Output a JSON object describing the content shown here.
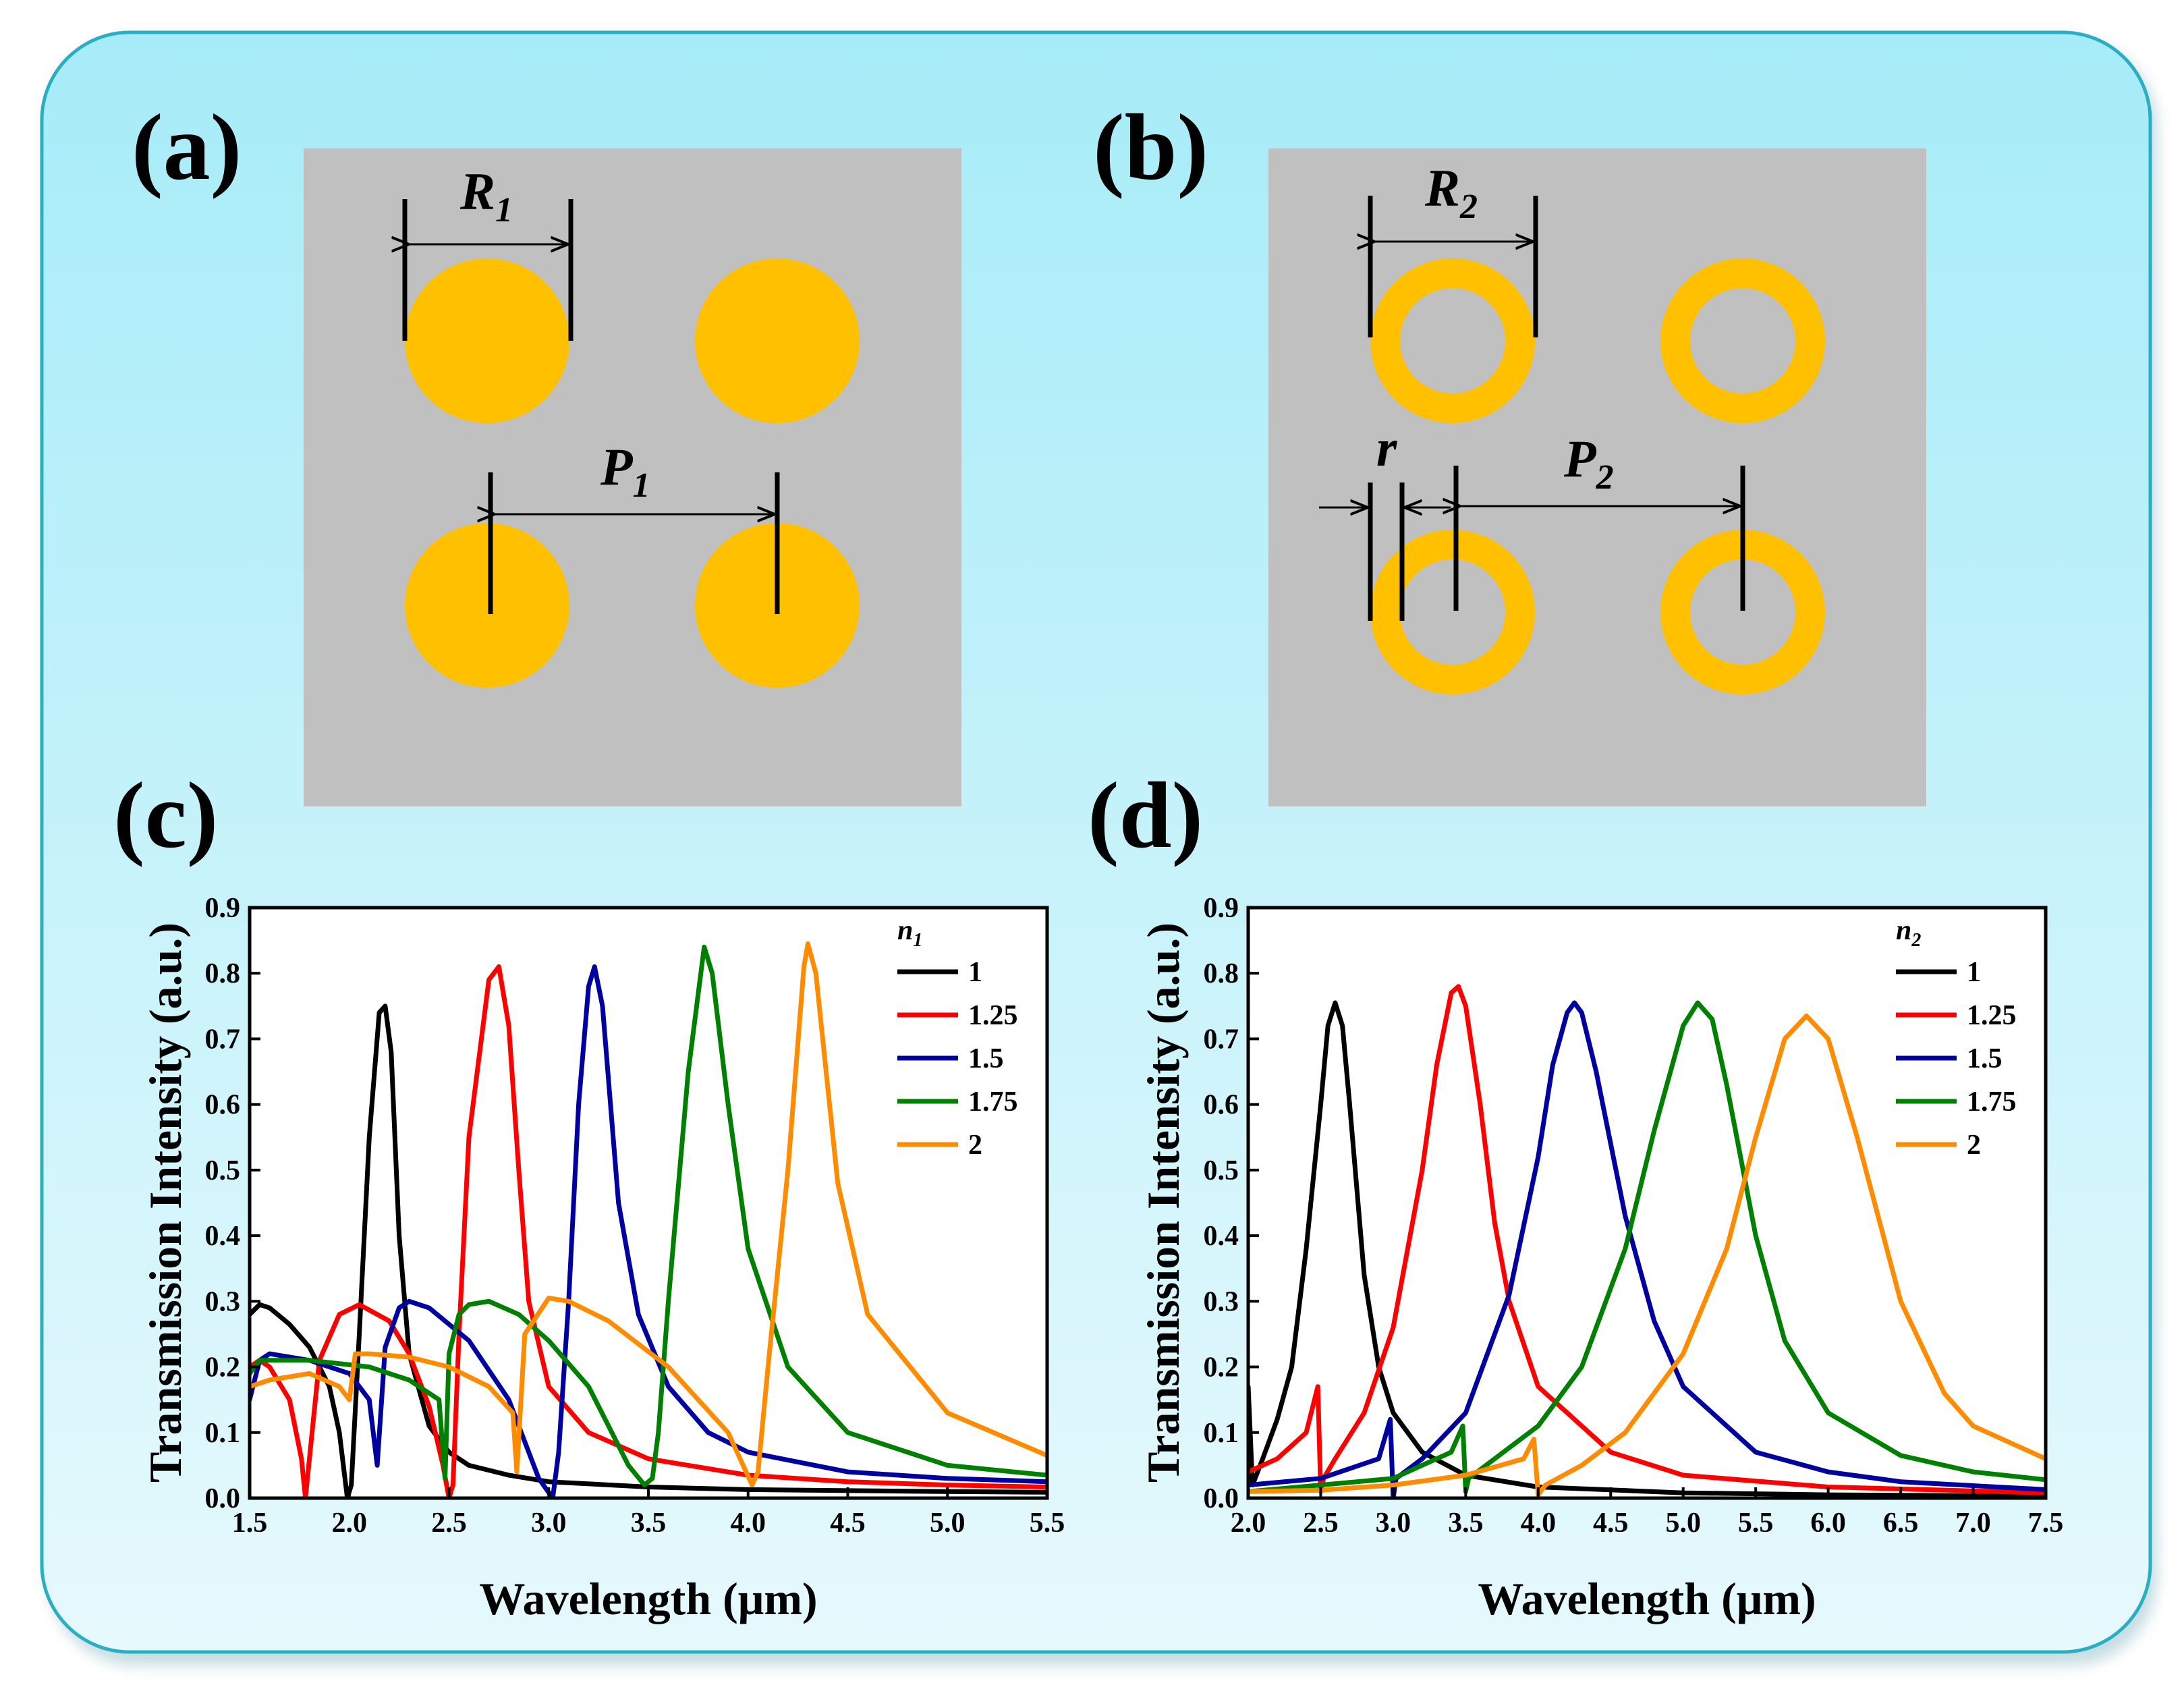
{
  "panels": {
    "a": {
      "label": "(a)",
      "diameter_label": "R",
      "diameter_sub": "1",
      "period_label": "P",
      "period_sub": "1"
    },
    "b": {
      "label": "(b)",
      "diameter_label": "R",
      "diameter_sub": "2",
      "period_label": "P",
      "period_sub": "2",
      "width_label": "r"
    }
  },
  "colors": {
    "background_top": "#a6ecf8",
    "background_bottom": "#e6f9fd",
    "border": "#2aaec4",
    "substrate": "#c0c0c0",
    "particle": "#ffc000"
  },
  "chart_data": [
    {
      "id": "c",
      "panel_label": "(c)",
      "type": "line",
      "xlabel": "Wavelength (μm)",
      "ylabel": "Transmission Intensity (a.u.)",
      "xlim": [
        1.5,
        5.5
      ],
      "ylim": [
        0.0,
        0.9
      ],
      "x_ticks": [
        "1.5",
        "2.0",
        "2.5",
        "3.0",
        "3.5",
        "4.0",
        "4.5",
        "5.0",
        "5.5"
      ],
      "y_ticks": [
        "0.0",
        "0.1",
        "0.2",
        "0.3",
        "0.4",
        "0.5",
        "0.6",
        "0.7",
        "0.8",
        "0.9"
      ],
      "legend_title": "n",
      "legend_title_sub": "1",
      "series": [
        {
          "name": "1",
          "color": "#000000",
          "x": [
            1.5,
            1.55,
            1.6,
            1.7,
            1.8,
            1.9,
            1.95,
            1.99,
            2.01,
            2.05,
            2.1,
            2.15,
            2.18,
            2.21,
            2.25,
            2.3,
            2.4,
            2.5,
            2.6,
            2.8,
            3.0,
            3.5,
            4.0,
            5.0,
            5.5
          ],
          "y": [
            0.28,
            0.295,
            0.29,
            0.265,
            0.23,
            0.17,
            0.1,
            0.0,
            0.02,
            0.25,
            0.55,
            0.74,
            0.75,
            0.68,
            0.4,
            0.22,
            0.11,
            0.07,
            0.05,
            0.035,
            0.025,
            0.017,
            0.013,
            0.01,
            0.009
          ]
        },
        {
          "name": "1.25",
          "color": "#ff0000",
          "x": [
            1.5,
            1.55,
            1.6,
            1.7,
            1.76,
            1.78,
            1.85,
            1.95,
            2.05,
            2.2,
            2.3,
            2.4,
            2.47,
            2.5,
            2.52,
            2.55,
            2.6,
            2.7,
            2.75,
            2.8,
            2.85,
            2.9,
            3.0,
            3.2,
            3.5,
            4.0,
            4.5,
            5.0,
            5.5
          ],
          "y": [
            0.2,
            0.21,
            0.2,
            0.15,
            0.06,
            0.0,
            0.21,
            0.28,
            0.295,
            0.27,
            0.22,
            0.14,
            0.05,
            0.0,
            0.02,
            0.25,
            0.55,
            0.79,
            0.81,
            0.72,
            0.5,
            0.3,
            0.17,
            0.1,
            0.06,
            0.035,
            0.025,
            0.02,
            0.017
          ]
        },
        {
          "name": "1.5",
          "color": "#0000a0",
          "x": [
            1.5,
            1.55,
            1.6,
            1.8,
            2.0,
            2.1,
            2.14,
            2.18,
            2.25,
            2.3,
            2.4,
            2.6,
            2.8,
            2.95,
            3.02,
            3.05,
            3.1,
            3.15,
            3.2,
            3.23,
            3.27,
            3.35,
            3.45,
            3.6,
            3.8,
            4.0,
            4.5,
            5.0,
            5.5
          ],
          "y": [
            0.15,
            0.21,
            0.22,
            0.21,
            0.19,
            0.15,
            0.05,
            0.23,
            0.29,
            0.3,
            0.29,
            0.24,
            0.15,
            0.03,
            0.0,
            0.07,
            0.3,
            0.6,
            0.78,
            0.81,
            0.75,
            0.45,
            0.28,
            0.17,
            0.1,
            0.07,
            0.04,
            0.03,
            0.025
          ]
        },
        {
          "name": "1.75",
          "color": "#008000",
          "x": [
            1.5,
            1.55,
            1.6,
            1.8,
            2.1,
            2.3,
            2.45,
            2.48,
            2.5,
            2.55,
            2.6,
            2.7,
            2.85,
            3.0,
            3.2,
            3.4,
            3.48,
            3.52,
            3.55,
            3.6,
            3.7,
            3.78,
            3.82,
            3.9,
            4.0,
            4.2,
            4.5,
            5.0,
            5.5
          ],
          "y": [
            0.19,
            0.21,
            0.21,
            0.21,
            0.2,
            0.18,
            0.15,
            0.03,
            0.22,
            0.28,
            0.295,
            0.3,
            0.28,
            0.24,
            0.17,
            0.05,
            0.02,
            0.03,
            0.1,
            0.3,
            0.65,
            0.84,
            0.8,
            0.6,
            0.38,
            0.2,
            0.1,
            0.05,
            0.035
          ]
        },
        {
          "name": "2",
          "color": "#ff8c00",
          "x": [
            1.5,
            1.6,
            1.8,
            1.95,
            2.0,
            2.03,
            2.1,
            2.3,
            2.5,
            2.7,
            2.82,
            2.84,
            2.88,
            3.0,
            3.1,
            3.3,
            3.6,
            3.9,
            4.02,
            4.05,
            4.1,
            4.2,
            4.28,
            4.3,
            4.34,
            4.45,
            4.6,
            5.0,
            5.5
          ],
          "y": [
            0.17,
            0.18,
            0.19,
            0.17,
            0.15,
            0.22,
            0.22,
            0.215,
            0.2,
            0.17,
            0.13,
            0.04,
            0.25,
            0.305,
            0.3,
            0.27,
            0.2,
            0.1,
            0.02,
            0.04,
            0.2,
            0.5,
            0.81,
            0.845,
            0.8,
            0.48,
            0.28,
            0.13,
            0.065
          ]
        }
      ]
    },
    {
      "id": "d",
      "panel_label": "(d)",
      "type": "line",
      "xlabel": "Wavelength (μm)",
      "ylabel": "Transmission Intensity (a.u.)",
      "xlim": [
        2.0,
        7.5
      ],
      "ylim": [
        0.0,
        0.9
      ],
      "x_ticks": [
        "2.0",
        "2.5",
        "3.0",
        "3.5",
        "4.0",
        "4.5",
        "5.0",
        "5.5",
        "6.0",
        "6.5",
        "7.0",
        "7.5"
      ],
      "y_ticks": [
        "0.0",
        "0.1",
        "0.2",
        "0.3",
        "0.4",
        "0.5",
        "0.6",
        "0.7",
        "0.8",
        "0.9"
      ],
      "legend_title": "n",
      "legend_title_sub": "2",
      "series": [
        {
          "name": "1",
          "color": "#000000",
          "x": [
            2.0,
            2.03,
            2.1,
            2.2,
            2.3,
            2.4,
            2.5,
            2.55,
            2.6,
            2.65,
            2.7,
            2.8,
            2.9,
            3.0,
            3.2,
            3.5,
            4.0,
            5.0,
            6.0,
            7.5
          ],
          "y": [
            0.17,
            0.02,
            0.06,
            0.12,
            0.2,
            0.38,
            0.6,
            0.72,
            0.755,
            0.72,
            0.6,
            0.34,
            0.2,
            0.13,
            0.07,
            0.035,
            0.017,
            0.008,
            0.005,
            0.003
          ]
        },
        {
          "name": "1.25",
          "color": "#ff0000",
          "x": [
            2.0,
            2.2,
            2.4,
            2.48,
            2.5,
            2.52,
            2.6,
            2.8,
            3.0,
            3.2,
            3.3,
            3.4,
            3.45,
            3.5,
            3.6,
            3.7,
            3.8,
            4.0,
            4.5,
            5.0,
            6.0,
            7.5
          ],
          "y": [
            0.04,
            0.06,
            0.1,
            0.17,
            0.01,
            0.03,
            0.06,
            0.13,
            0.26,
            0.5,
            0.66,
            0.77,
            0.78,
            0.75,
            0.6,
            0.42,
            0.3,
            0.17,
            0.07,
            0.035,
            0.017,
            0.008
          ]
        },
        {
          "name": "1.5",
          "color": "#0000a0",
          "x": [
            2.0,
            2.5,
            2.9,
            2.98,
            3.0,
            3.02,
            3.2,
            3.5,
            3.8,
            4.0,
            4.1,
            4.2,
            4.25,
            4.3,
            4.4,
            4.6,
            4.8,
            5.0,
            5.5,
            6.0,
            6.5,
            7.5
          ],
          "y": [
            0.02,
            0.03,
            0.06,
            0.12,
            0.0,
            0.03,
            0.06,
            0.13,
            0.31,
            0.52,
            0.66,
            0.74,
            0.755,
            0.74,
            0.65,
            0.43,
            0.27,
            0.17,
            0.07,
            0.04,
            0.025,
            0.013
          ]
        },
        {
          "name": "1.75",
          "color": "#008000",
          "x": [
            2.0,
            2.5,
            3.0,
            3.4,
            3.48,
            3.5,
            3.52,
            3.7,
            4.0,
            4.3,
            4.6,
            4.8,
            5.0,
            5.1,
            5.2,
            5.3,
            5.5,
            5.7,
            6.0,
            6.5,
            7.0,
            7.5
          ],
          "y": [
            0.01,
            0.02,
            0.03,
            0.07,
            0.11,
            0.01,
            0.03,
            0.06,
            0.11,
            0.2,
            0.38,
            0.56,
            0.72,
            0.755,
            0.73,
            0.63,
            0.4,
            0.24,
            0.13,
            0.065,
            0.04,
            0.028
          ]
        },
        {
          "name": "2",
          "color": "#ff8c00",
          "x": [
            2.0,
            2.5,
            3.0,
            3.5,
            3.9,
            3.97,
            4.0,
            4.05,
            4.3,
            4.6,
            5.0,
            5.3,
            5.5,
            5.7,
            5.85,
            6.0,
            6.2,
            6.5,
            6.8,
            7.0,
            7.5
          ],
          "y": [
            0.01,
            0.012,
            0.02,
            0.035,
            0.06,
            0.09,
            0.005,
            0.02,
            0.05,
            0.1,
            0.22,
            0.38,
            0.55,
            0.7,
            0.735,
            0.7,
            0.55,
            0.3,
            0.16,
            0.11,
            0.06
          ]
        }
      ]
    }
  ]
}
